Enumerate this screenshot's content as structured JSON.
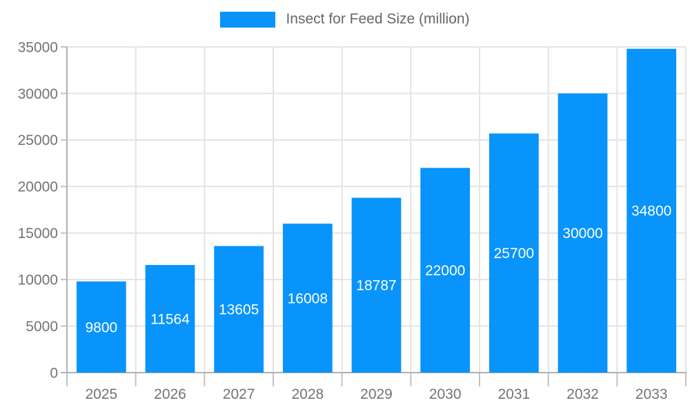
{
  "chart_data": {
    "type": "bar",
    "title": "Insect for Feed Size (million)",
    "categories": [
      "2025",
      "2026",
      "2027",
      "2028",
      "2029",
      "2030",
      "2031",
      "2032",
      "2033"
    ],
    "values": [
      9800,
      11564,
      13605,
      16008,
      18787,
      22000,
      25700,
      30000,
      34800
    ],
    "series": [
      {
        "name": "Insect for Feed Size (million)",
        "values": [
          9800,
          11564,
          13605,
          16008,
          18787,
          22000,
          25700,
          30000,
          34800
        ]
      }
    ],
    "xlabel": "",
    "ylabel": "",
    "ylim": [
      0,
      35000
    ],
    "ytick_step": 5000,
    "ytick_labels": [
      "0",
      "5000",
      "10000",
      "15000",
      "20000",
      "25000",
      "30000",
      "35000"
    ],
    "grid": true,
    "legend_position": "top",
    "value_labels": "inside-center",
    "colors": {
      "bar": "#0894fb",
      "grid": "#e3e3e3",
      "axis": "#b0b0b0",
      "tick": "#c2c2c2",
      "tick_label": "#737373",
      "legend_text": "#666666",
      "value_label": "#ffffff",
      "background": "#ffffff"
    }
  },
  "legend": {
    "label": "Insect for Feed Size (million)"
  }
}
